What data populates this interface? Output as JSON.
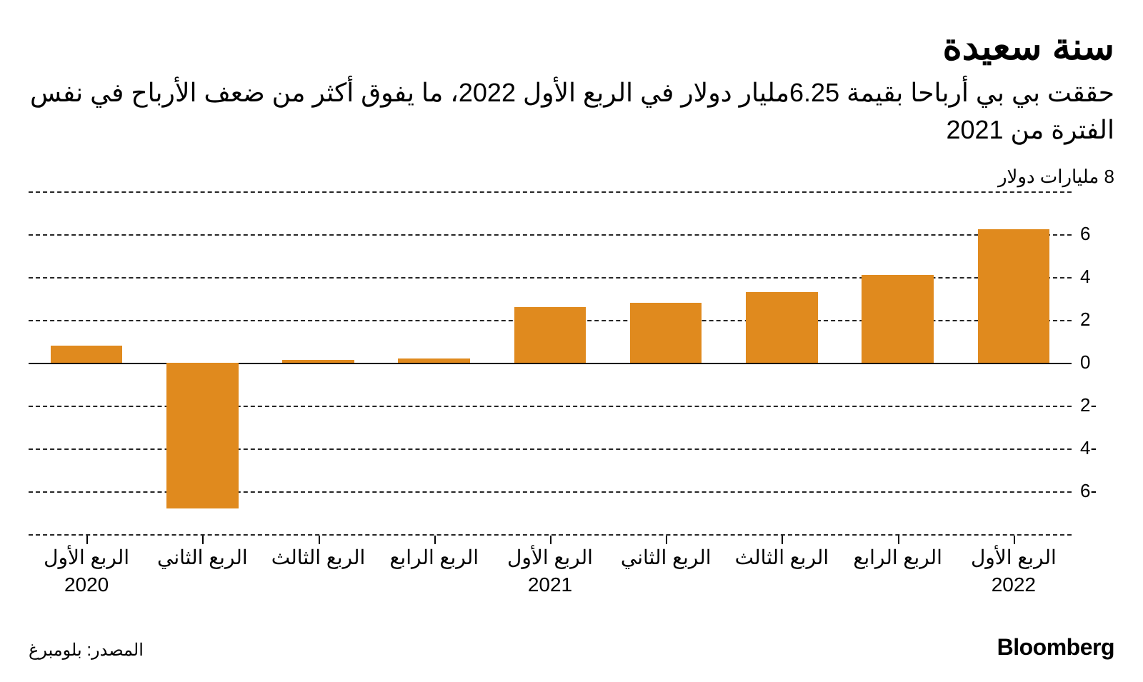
{
  "header": {
    "title": "سنة سعيدة",
    "subtitle": "حققت بي بي أرباحا بقيمة 6.25مليار دولار في الربع الأول 2022، ما يفوق أكثر من ضعف الأرباح في نفس الفترة من 2021"
  },
  "chart": {
    "type": "bar",
    "axis_unit_label": "8 مليارات دولار",
    "bar_color": "#e08a1e",
    "background_color": "#ffffff",
    "grid_color": "#000000",
    "grid_dash": true,
    "baseline_color": "#000000",
    "ylim": [
      -8,
      8
    ],
    "ytick_step": 2,
    "yticks": [
      {
        "v": 8,
        "label": ""
      },
      {
        "v": 6,
        "label": "6"
      },
      {
        "v": 4,
        "label": "4"
      },
      {
        "v": 2,
        "label": "2"
      },
      {
        "v": 0,
        "label": "0"
      },
      {
        "v": -2,
        "label": "2-"
      },
      {
        "v": -4,
        "label": "4-"
      },
      {
        "v": -6,
        "label": "6-"
      },
      {
        "v": -8,
        "label": ""
      }
    ],
    "bar_width_ratio": 0.62,
    "categories": [
      {
        "line1": "الربع الأول",
        "line2": "2020"
      },
      {
        "line1": "الربع الثاني",
        "line2": ""
      },
      {
        "line1": "الربع الثالث",
        "line2": ""
      },
      {
        "line1": "الربع الرابع",
        "line2": ""
      },
      {
        "line1": "الربع الأول",
        "line2": "2021"
      },
      {
        "line1": "الربع الثاني",
        "line2": ""
      },
      {
        "line1": "الربع الثالث",
        "line2": ""
      },
      {
        "line1": "الربع الرابع",
        "line2": ""
      },
      {
        "line1": "الربع الأول",
        "line2": "2022"
      }
    ],
    "values": [
      0.8,
      -6.8,
      0.15,
      0.2,
      2.6,
      2.8,
      3.3,
      4.1,
      6.25
    ],
    "title_fontsize": 52,
    "subtitle_fontsize": 36,
    "axis_label_fontsize": 26,
    "xlabel_fontsize": 28
  },
  "footer": {
    "source": "المصدر: بلومبرغ",
    "logo": "Bloomberg"
  }
}
